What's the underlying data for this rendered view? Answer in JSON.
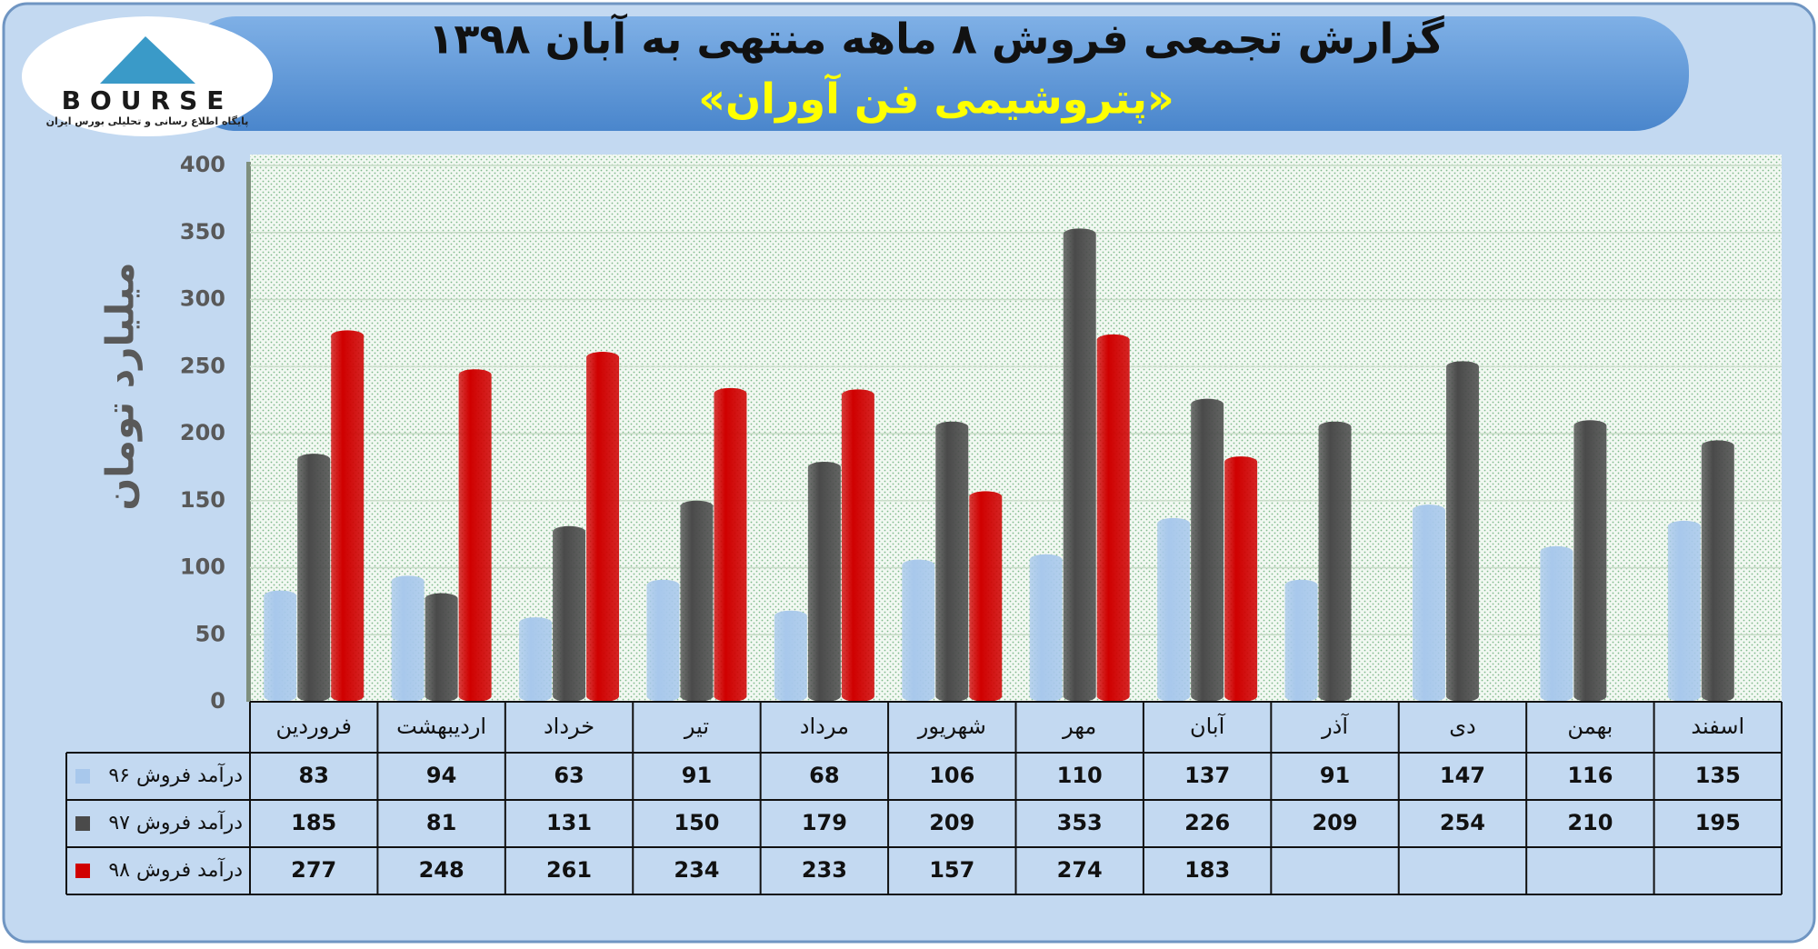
{
  "logo": {
    "text": "BOURSE",
    "caption": "پایگاه اطلاع رسانی و تحلیلی بورس ایران"
  },
  "chart_data": {
    "type": "bar",
    "title": "گزارش تجمعی فروش ۸ ماهه منتهی به آبان ۱۳۹۸",
    "subtitle": "«پتروشیمی فن آوران»",
    "y_label": "میلیارد تومان",
    "categories": [
      "فروردین",
      "اردیبهشت",
      "خرداد",
      "تیر",
      "مرداد",
      "شهریور",
      "مهر",
      "آبان",
      "آذر",
      "دی",
      "بهمن",
      "اسفند"
    ],
    "series": [
      {
        "name": "درآمد فروش ۹۶",
        "color": "#a8c8ec",
        "values": [
          83,
          94,
          63,
          91,
          68,
          106,
          110,
          137,
          91,
          147,
          116,
          135
        ]
      },
      {
        "name": "درآمد فروش ۹۷",
        "color": "#4a4a4a",
        "values": [
          185,
          81,
          131,
          150,
          179,
          209,
          353,
          226,
          209,
          254,
          210,
          195
        ]
      },
      {
        "name": "درآمد فروش ۹۸",
        "color": "#d00000",
        "values": [
          277,
          248,
          261,
          234,
          233,
          157,
          274,
          183,
          null,
          null,
          null,
          null
        ]
      }
    ],
    "ylim": [
      0,
      400
    ],
    "yticks": [
      0,
      50,
      100,
      150,
      200,
      250,
      300,
      350,
      400
    ],
    "grid": true
  }
}
